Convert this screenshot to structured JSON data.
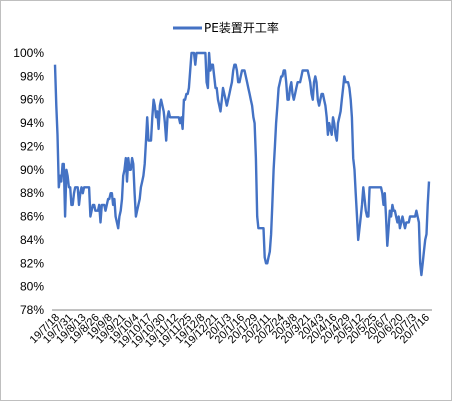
{
  "chart_data": {
    "type": "line",
    "title": "",
    "xlabel": "",
    "ylabel": "",
    "ylim": [
      0.78,
      1.0
    ],
    "y_ticks": [
      0.78,
      0.8,
      0.82,
      0.84,
      0.86,
      0.88,
      0.9,
      0.92,
      0.94,
      0.96,
      0.98,
      1.0
    ],
    "y_tick_labels": [
      "78%",
      "80%",
      "82%",
      "84%",
      "86%",
      "88%",
      "90%",
      "92%",
      "94%",
      "96%",
      "98%",
      "100%"
    ],
    "x_tick_labels": [
      "19/7/18",
      "19/7/31",
      "19/8/13",
      "19/8/26",
      "19/9/8",
      "19/9/21",
      "19/10/4",
      "19/10/17",
      "19/10/30",
      "19/11/12",
      "19/11/25",
      "19/12/8",
      "19/12/21",
      "20/1/3",
      "20/1/16",
      "20/1/29",
      "20/2/11",
      "20/2/24",
      "20/3/8",
      "20/3/21",
      "20/4/3",
      "20/4/16",
      "20/4/29",
      "20/5/12",
      "20/5/25",
      "20/6/7",
      "20/6/20",
      "20/7/3",
      "20/7/16"
    ],
    "legend_position": "top-center",
    "grid": false,
    "series": [
      {
        "name": "PE装置开工率",
        "color": "#4472c4",
        "x_day_step": 1,
        "values": [
          0.99,
          0.955,
          0.93,
          0.885,
          0.895,
          0.89,
          0.905,
          0.905,
          0.86,
          0.9,
          0.895,
          0.885,
          0.885,
          0.87,
          0.87,
          0.88,
          0.885,
          0.885,
          0.885,
          0.87,
          0.88,
          0.885,
          0.88,
          0.885,
          0.885,
          0.885,
          0.885,
          0.885,
          0.86,
          0.865,
          0.87,
          0.87,
          0.865,
          0.865,
          0.865,
          0.87,
          0.855,
          0.87,
          0.87,
          0.87,
          0.865,
          0.87,
          0.875,
          0.875,
          0.88,
          0.88,
          0.87,
          0.875,
          0.86,
          0.855,
          0.85,
          0.86,
          0.865,
          0.875,
          0.895,
          0.9,
          0.91,
          0.89,
          0.91,
          0.9,
          0.9,
          0.91,
          0.905,
          0.88,
          0.86,
          0.865,
          0.87,
          0.875,
          0.885,
          0.89,
          0.895,
          0.905,
          0.925,
          0.945,
          0.925,
          0.925,
          0.925,
          0.945,
          0.96,
          0.955,
          0.945,
          0.95,
          0.935,
          0.955,
          0.96,
          0.955,
          0.95,
          0.94,
          0.925,
          0.945,
          0.95,
          0.945,
          0.945,
          0.945,
          0.945,
          0.945,
          0.945,
          0.945,
          0.945,
          0.94,
          0.945,
          0.935,
          0.96,
          0.96,
          0.965,
          0.965,
          0.97,
          0.985,
          1.0,
          1.0,
          1.0,
          0.99,
          1.0,
          1.0,
          1.0,
          1.0,
          1.0,
          1.0,
          1.0,
          1.0,
          0.975,
          0.97,
          1.0,
          0.985,
          0.99,
          0.99,
          0.98,
          0.97,
          0.97,
          0.96,
          0.955,
          0.95,
          0.96,
          0.97,
          0.965,
          0.96,
          0.955,
          0.96,
          0.965,
          0.97,
          0.975,
          0.985,
          0.99,
          0.99,
          0.985,
          0.975,
          0.975,
          0.98,
          0.985,
          0.985,
          0.985,
          0.98,
          0.975,
          0.97,
          0.965,
          0.96,
          0.955,
          0.945,
          0.94,
          0.91,
          0.86,
          0.85,
          0.85,
          0.85,
          0.85,
          0.85,
          0.825,
          0.82,
          0.82,
          0.825,
          0.83,
          0.845,
          0.87,
          0.9,
          0.92,
          0.94,
          0.955,
          0.97,
          0.975,
          0.98,
          0.98,
          0.985,
          0.985,
          0.975,
          0.96,
          0.96,
          0.97,
          0.975,
          0.965,
          0.96,
          0.965,
          0.97,
          0.975,
          0.975,
          0.975,
          0.98,
          0.985,
          0.985,
          0.985,
          0.985,
          0.985,
          0.98,
          0.975,
          0.965,
          0.96,
          0.975,
          0.98,
          0.975,
          0.96,
          0.955,
          0.96,
          0.965,
          0.965,
          0.96,
          0.955,
          0.945,
          0.93,
          0.94,
          0.935,
          0.93,
          0.945,
          0.94,
          0.93,
          0.925,
          0.94,
          0.945,
          0.95,
          0.96,
          0.97,
          0.98,
          0.975,
          0.975,
          0.975,
          0.97,
          0.96,
          0.945,
          0.91,
          0.9,
          0.88,
          0.86,
          0.84,
          0.85,
          0.86,
          0.87,
          0.885,
          0.875,
          0.865,
          0.86,
          0.86,
          0.885,
          0.885,
          0.885,
          0.885,
          0.885,
          0.885,
          0.885,
          0.885,
          0.885,
          0.885,
          0.88,
          0.87,
          0.88,
          0.86,
          0.835,
          0.85,
          0.865,
          0.86,
          0.87,
          0.865,
          0.865,
          0.86,
          0.855,
          0.86,
          0.85,
          0.855,
          0.86,
          0.855,
          0.85,
          0.855,
          0.855,
          0.855,
          0.86,
          0.86,
          0.86,
          0.86,
          0.86,
          0.865,
          0.86,
          0.855,
          0.82,
          0.81,
          0.82,
          0.83,
          0.84,
          0.845,
          0.87,
          0.89
        ]
      }
    ]
  }
}
